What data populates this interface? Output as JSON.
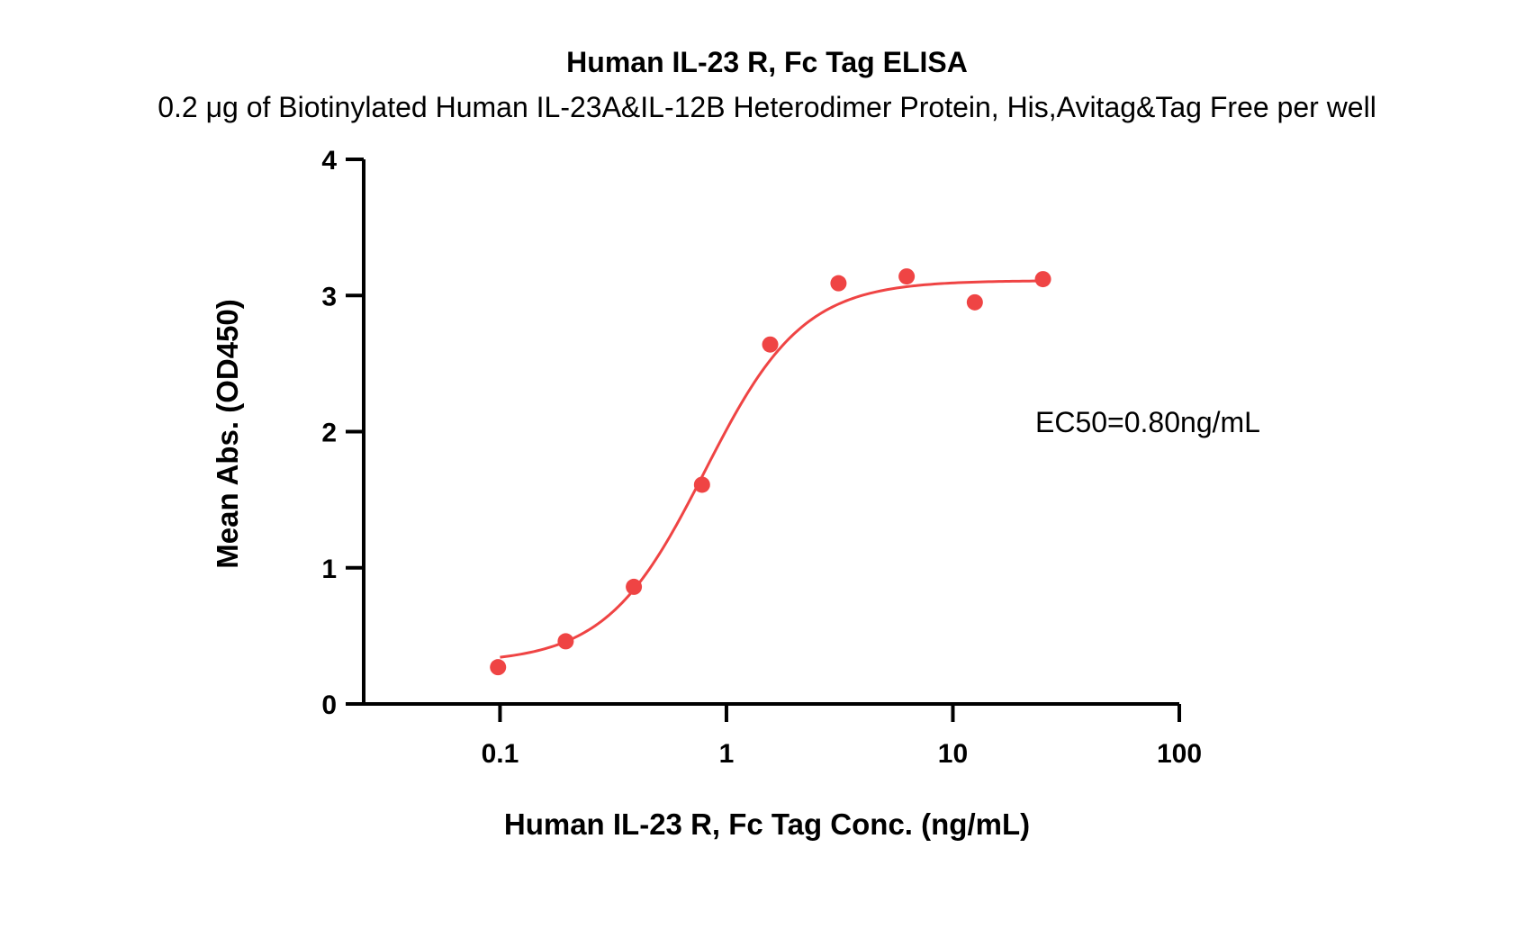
{
  "chart_data": {
    "type": "scatter",
    "title": "Human IL-23 R, Fc Tag ELISA",
    "subtitle": "0.2 μg of Biotinylated Human IL-23A&IL-12B Heterodimer Protein, His,Avitag&Tag Free per well",
    "xlabel": "Human IL-23 R, Fc Tag Conc. (ng/mL)",
    "ylabel": "Mean Abs. (OD450)",
    "xscale": "log",
    "xlim": [
      0.025,
      100
    ],
    "ylim": [
      0,
      4
    ],
    "xticks": [
      0.1,
      1,
      10,
      100
    ],
    "xtick_labels": [
      "0.1",
      "1",
      "10",
      "100"
    ],
    "yticks": [
      0,
      1,
      2,
      3,
      4
    ],
    "ytick_labels": [
      "0",
      "1",
      "2",
      "3",
      "4"
    ],
    "grid": false,
    "color": "#ef4444",
    "series": [
      {
        "x": [
          0.098,
          0.195,
          0.39,
          0.78,
          1.56,
          3.125,
          6.25,
          12.5,
          25
        ],
        "y": [
          0.27,
          0.46,
          0.86,
          1.61,
          2.64,
          3.09,
          3.14,
          2.95,
          3.12
        ]
      }
    ],
    "fit": {
      "model": "4PL",
      "bottom": 0.3,
      "top": 3.11,
      "ec50": 0.8,
      "hill": 2.0,
      "x_range": [
        0.1,
        25
      ]
    },
    "annotations": [
      {
        "text": "EC50=0.80ng/mL"
      }
    ]
  }
}
